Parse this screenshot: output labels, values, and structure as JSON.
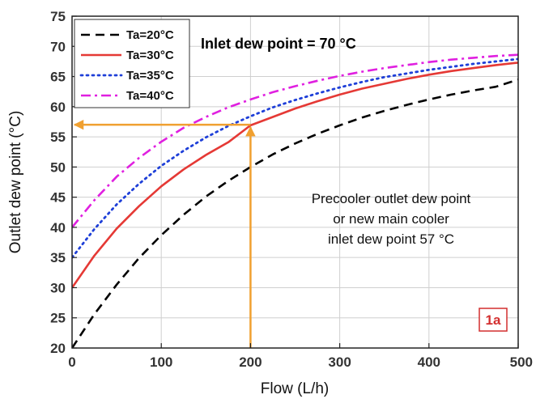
{
  "chart_data": {
    "type": "line",
    "xlabel": "Flow (L/h)",
    "ylabel": "Outlet dew point (°C)",
    "xlim": [
      0,
      500
    ],
    "ylim": [
      20,
      75
    ],
    "xticks": [
      0,
      100,
      200,
      300,
      400,
      500
    ],
    "yticks": [
      20,
      25,
      30,
      35,
      40,
      45,
      50,
      55,
      60,
      65,
      70,
      75
    ],
    "grid": true,
    "legend_position": "top-left",
    "x": [
      0,
      25,
      50,
      75,
      100,
      125,
      150,
      175,
      200,
      225,
      250,
      275,
      300,
      325,
      350,
      375,
      400,
      425,
      450,
      475,
      500
    ],
    "series": [
      {
        "name": "Ta=20°C",
        "color": "#000000",
        "dash": "dashed",
        "values": [
          20.0,
          25.6,
          30.5,
          34.9,
          38.7,
          42.1,
          45.1,
          47.7,
          50.0,
          52.1,
          53.9,
          55.5,
          56.9,
          58.2,
          59.3,
          60.3,
          61.2,
          62.0,
          62.7,
          63.3,
          64.5
        ]
      },
      {
        "name": "Ta=30°C",
        "color": "#e53935",
        "dash": "solid",
        "values": [
          30.0,
          35.3,
          39.8,
          43.5,
          46.8,
          49.6,
          52.0,
          54.1,
          56.9,
          58.3,
          59.7,
          60.9,
          62.0,
          63.0,
          63.8,
          64.6,
          65.3,
          65.9,
          66.4,
          66.9,
          67.3
        ]
      },
      {
        "name": "Ta=35°C",
        "color": "#1e3fd8",
        "dash": "dotted",
        "values": [
          35.0,
          39.7,
          43.8,
          47.2,
          50.2,
          52.7,
          54.9,
          56.8,
          58.4,
          59.9,
          61.1,
          62.2,
          63.2,
          64.1,
          64.9,
          65.5,
          66.1,
          66.6,
          67.1,
          67.5,
          67.9
        ]
      },
      {
        "name": "Ta=40°C",
        "color": "#e020e0",
        "dash": "dashdot",
        "values": [
          40.0,
          44.5,
          48.4,
          51.5,
          54.2,
          56.5,
          58.3,
          59.9,
          61.2,
          62.4,
          63.4,
          64.3,
          65.1,
          65.8,
          66.4,
          66.9,
          67.4,
          67.8,
          68.1,
          68.4,
          68.6
        ]
      }
    ],
    "annotations": {
      "title": "Inlet dew point = 70 °C",
      "note_lines": [
        "Precooler outlet dew point",
        "or new main cooler",
        "inlet dew point 57 °C"
      ],
      "badge": "1a",
      "guide": {
        "x": 200,
        "y": 57,
        "color": "#f0a030"
      }
    }
  }
}
